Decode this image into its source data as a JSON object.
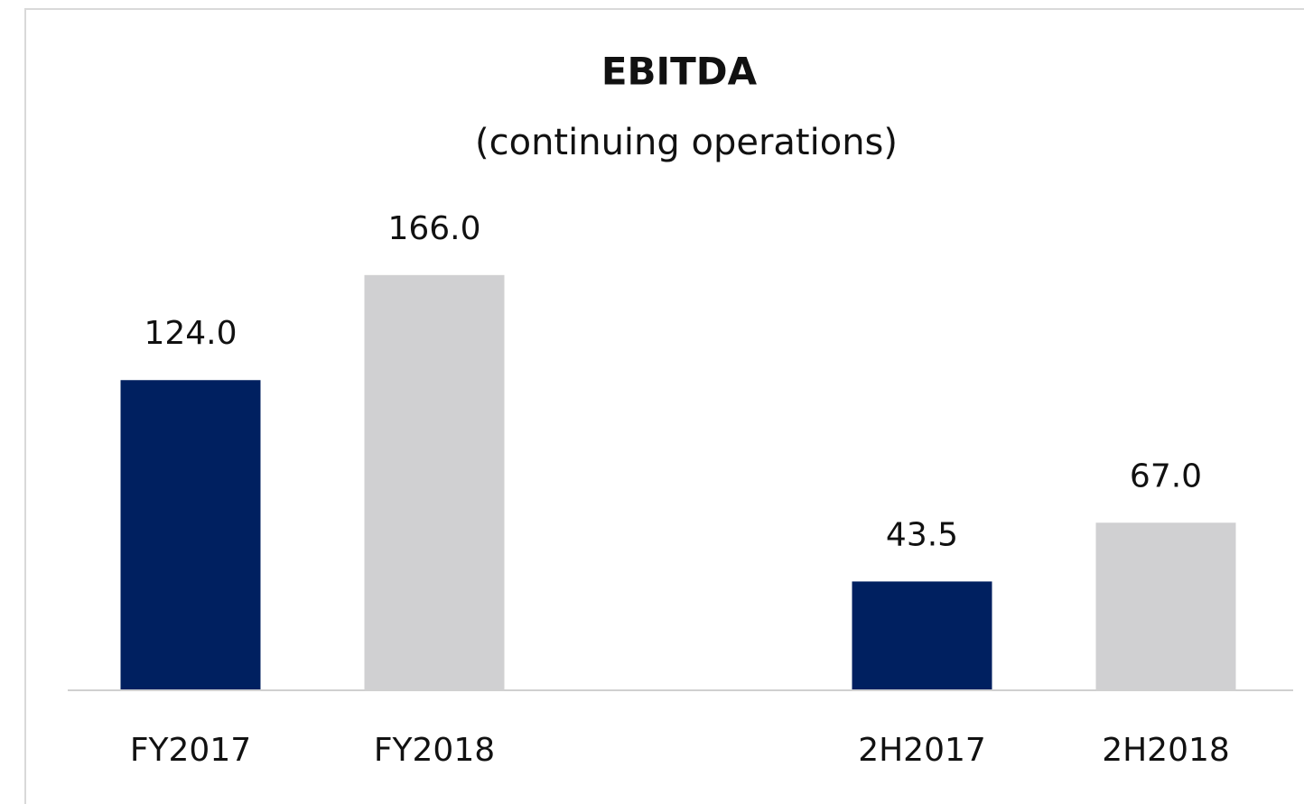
{
  "chart_data": {
    "type": "bar",
    "title": "EBITDA",
    "subtitle": "(continuing operations)",
    "categories": [
      "FY2017",
      "FY2018",
      null,
      "2H2017",
      "2H2018"
    ],
    "values": [
      124,
      166,
      null,
      43.5,
      67
    ],
    "value_labels": [
      "124.0",
      "166.0",
      null,
      "43.5",
      "67.0"
    ],
    "colors": [
      "#002060",
      "#d0d0d2",
      null,
      "#002060",
      "#d0d0d2"
    ],
    "ylim": [
      0,
      180
    ]
  }
}
